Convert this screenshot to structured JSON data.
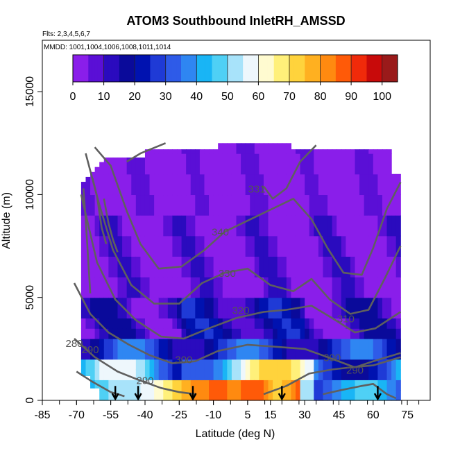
{
  "chart_data": {
    "type": "heatmap",
    "title": "ATOM3 Southbound InletRH_AMSSD",
    "flights_note": "Flts: 2,3,4,5,6,7",
    "dates_note": "MMDD: 1001,1004,1006,1008,1011,1014",
    "xlabel": "Latitude (deg N)",
    "ylabel": "Altitude (m)",
    "xlim": [
      -85,
      85
    ],
    "ylim": [
      0,
      17500
    ],
    "x_ticks": [
      -85,
      -70,
      -55,
      -40,
      -25,
      -10,
      5,
      15,
      30,
      45,
      60,
      75
    ],
    "y_ticks": [
      0,
      5000,
      10000,
      15000
    ],
    "colorbar": {
      "range": [
        0,
        105
      ],
      "ticks": [
        0,
        10,
        20,
        30,
        40,
        50,
        60,
        70,
        80,
        90,
        100
      ],
      "colors": [
        "#8a1eea",
        "#5a0fd6",
        "#2a0bbe",
        "#0a0a9a",
        "#0012b0",
        "#1f3ad6",
        "#2e5be8",
        "#2f86f2",
        "#19b5f5",
        "#4fd0f5",
        "#a8e3fa",
        "#eef7fc",
        "#fffbd0",
        "#fff07a",
        "#ffd33c",
        "#ffb020",
        "#ff8a10",
        "#ff5a08",
        "#f02a0a",
        "#c80a0a",
        "#9a1a1a"
      ]
    },
    "contour_labels": [
      "340",
      "330",
      "320",
      "310",
      "300",
      "300",
      "290",
      "290",
      "290",
      "280",
      "331"
    ],
    "flight_arrows_lat": [
      -53,
      -43,
      -19,
      20,
      62
    ],
    "cell_grid": {
      "lat_start": -68,
      "lat_end": 72,
      "alt_levels": [
        0,
        500,
        1000,
        1500,
        2000,
        2500,
        3000,
        3500,
        4000,
        5000,
        6000,
        7000,
        8000,
        9000,
        10000,
        11000,
        12000,
        12500
      ]
    }
  }
}
